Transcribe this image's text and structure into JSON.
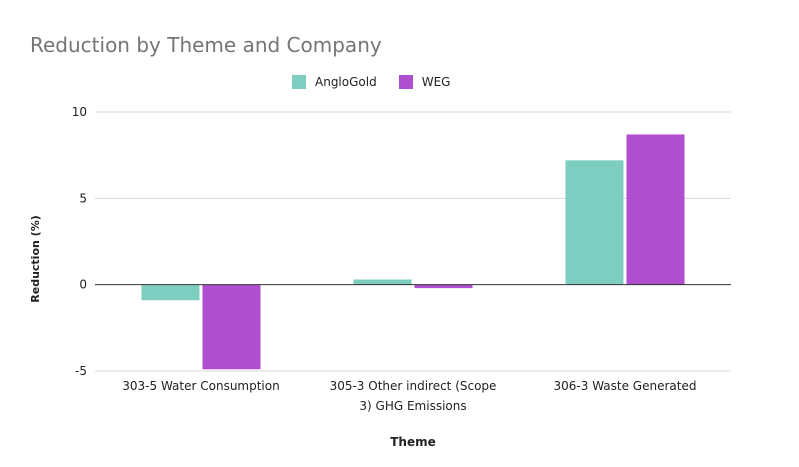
{
  "chart_data": {
    "type": "bar",
    "title": "Reduction by Theme and Company",
    "xlabel": "Theme",
    "ylabel": "Reduction (%)",
    "categories": [
      [
        "303-5 Water Consumption"
      ],
      [
        "305-3 Other indirect (Scope",
        "3) GHG Emissions"
      ],
      [
        "306-3 Waste Generated"
      ]
    ],
    "series": [
      {
        "name": "AngloGold",
        "color": "#7dcdc1",
        "values": [
          -0.9,
          0.3,
          7.2
        ]
      },
      {
        "name": "WEG",
        "color": "#b04ed0",
        "values": [
          -4.9,
          -0.2,
          8.7
        ]
      }
    ],
    "ylim": [
      -5,
      10
    ],
    "yticks": [
      10,
      5,
      0,
      -5
    ],
    "grid": true,
    "legend_position": "top"
  }
}
